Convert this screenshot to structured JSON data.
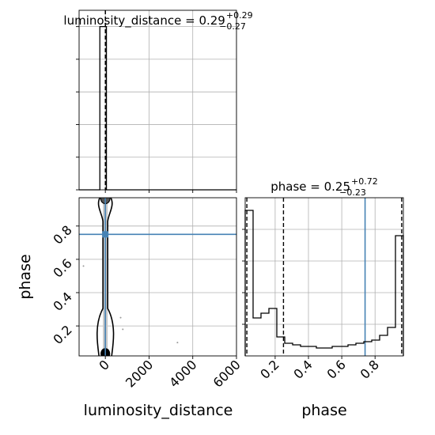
{
  "chart_data": [
    {
      "type": "histogram",
      "panel": "luminosity_distance marginal",
      "title": "luminosity_distance = 0.29",
      "title_sup": "+0.29",
      "title_sub": "−0.27",
      "xlim": [
        -1200,
        6000
      ],
      "xticks": [
        0,
        2000,
        4000,
        6000
      ],
      "quantiles": [
        0.02,
        0.29,
        0.58
      ],
      "hist_x": [
        -1200,
        -250,
        0,
        50,
        6000
      ],
      "hist_y": [
        0,
        1.0,
        1.0,
        0,
        0
      ],
      "grid": true
    },
    {
      "type": "scatter",
      "panel": "joint luminosity_distance vs phase",
      "xlabel": "luminosity_distance",
      "ylabel": "phase",
      "xlim": [
        -1200,
        6000
      ],
      "ylim": [
        0.02,
        0.97
      ],
      "xticks": [
        0,
        2000,
        4000,
        6000
      ],
      "yticks": [
        0.2,
        0.4,
        0.6,
        0.8
      ],
      "truth": {
        "x": 0,
        "y": 0.75
      },
      "outliers": [
        {
          "x": -1000,
          "y": 0.56
        },
        {
          "x": 800,
          "y": 0.18
        },
        {
          "x": 3300,
          "y": 0.1
        },
        {
          "x": 700,
          "y": 0.25
        }
      ],
      "grid": true
    },
    {
      "type": "histogram",
      "panel": "phase marginal",
      "title": "phase = 0.25",
      "title_sup": "+0.72",
      "title_sub": "−0.23",
      "xlabel": "phase",
      "xlim": [
        0.02,
        0.97
      ],
      "xticks": [
        0.2,
        0.4,
        0.6,
        0.8
      ],
      "quantiles": [
        0.03,
        0.25,
        0.96
      ],
      "truth": 0.74,
      "bin_edges": [
        0.02,
        0.0675,
        0.115,
        0.1625,
        0.21,
        0.2575,
        0.305,
        0.3525,
        0.4,
        0.4475,
        0.495,
        0.5425,
        0.59,
        0.6375,
        0.685,
        0.7325,
        0.78,
        0.8275,
        0.875,
        0.9225,
        0.97
      ],
      "values": [
        0.92,
        0.24,
        0.27,
        0.3,
        0.12,
        0.08,
        0.07,
        0.06,
        0.06,
        0.05,
        0.05,
        0.06,
        0.06,
        0.07,
        0.08,
        0.09,
        0.1,
        0.13,
        0.18,
        0.76
      ],
      "grid": true
    }
  ]
}
